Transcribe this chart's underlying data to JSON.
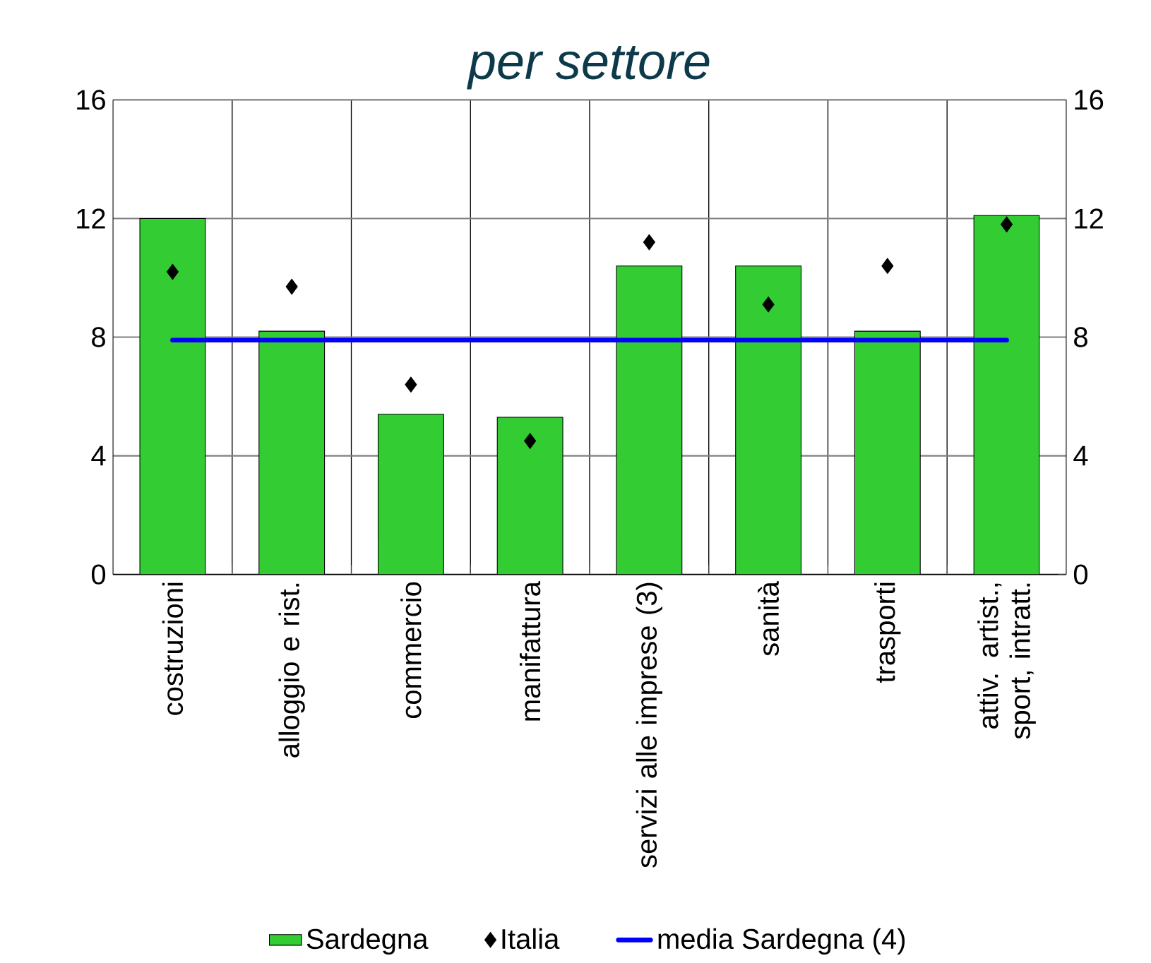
{
  "chart_data": {
    "type": "bar",
    "title": "per settore",
    "categories": [
      "costruzioni",
      "alloggio e rist.",
      "commercio",
      "manifattura",
      "servizi alle imprese (3)",
      "sanità",
      "trasporti",
      "attiv. artist., sport, intratt."
    ],
    "series": [
      {
        "name": "Sardegna",
        "color": "#33cc33",
        "values": [
          12.0,
          8.2,
          5.4,
          5.3,
          10.4,
          10.4,
          8.2,
          12.1
        ]
      },
      {
        "name": "Italia",
        "type": "scatter",
        "marker": "diamond",
        "color": "#000000",
        "values": [
          10.2,
          9.7,
          6.4,
          4.5,
          11.2,
          9.1,
          10.4,
          11.8
        ]
      },
      {
        "name": "media Sardegna (4)",
        "type": "line",
        "color": "#0000ff",
        "values": [
          7.9,
          7.9,
          7.9,
          7.9,
          7.9,
          7.9,
          7.9,
          7.9
        ]
      }
    ],
    "ylim": [
      0,
      16
    ],
    "yticks": [
      0,
      4,
      8,
      12,
      16
    ],
    "y2lim": [
      0,
      16
    ],
    "y2ticks": [
      0,
      4,
      8,
      12,
      16
    ],
    "grid": true,
    "legend": "bottom"
  }
}
